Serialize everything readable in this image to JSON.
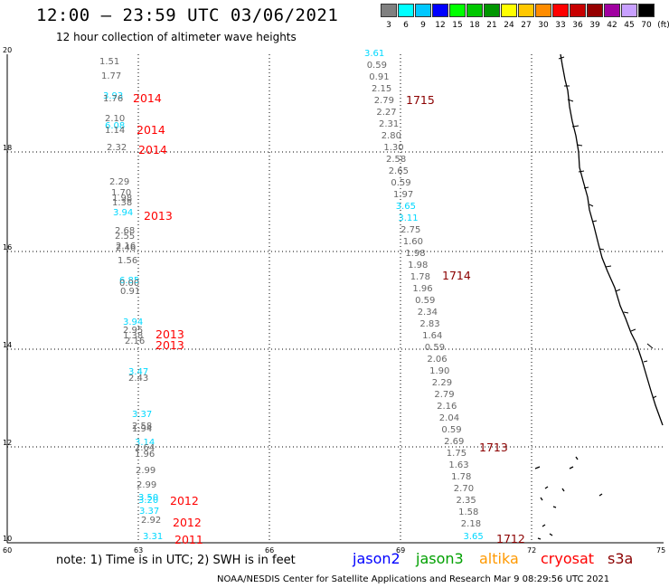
{
  "header": {
    "title": "12:00 – 23:59 UTC 03/06/2021",
    "subtitle": "12 hour collection of altimeter wave heights"
  },
  "colorbar": {
    "unit": "(ft)",
    "bins": [
      {
        "label": "3",
        "color": "#808080"
      },
      {
        "label": "6",
        "color": "#00ffff"
      },
      {
        "label": "9",
        "color": "#00c8ff"
      },
      {
        "label": "12",
        "color": "#0000ff"
      },
      {
        "label": "15",
        "color": "#00ff00"
      },
      {
        "label": "18",
        "color": "#00c800"
      },
      {
        "label": "21",
        "color": "#009600"
      },
      {
        "label": "24",
        "color": "#ffff00"
      },
      {
        "label": "27",
        "color": "#ffc800"
      },
      {
        "label": "30",
        "color": "#ff8c00"
      },
      {
        "label": "33",
        "color": "#ff0000"
      },
      {
        "label": "36",
        "color": "#c80000"
      },
      {
        "label": "39",
        "color": "#960000"
      },
      {
        "label": "42",
        "color": "#a000a0"
      },
      {
        "label": "45",
        "color": "#c8a0ff"
      },
      {
        "label": "70",
        "color": "#000000"
      }
    ]
  },
  "map_axes": {
    "lon_labels": [
      "60",
      "63",
      "66",
      "69",
      "72",
      "75"
    ],
    "lat_labels": [
      "20",
      "18",
      "16",
      "14",
      "12",
      "10"
    ]
  },
  "tracks": {
    "track_a": {
      "values": [
        {
          "v": "1.51",
          "c": "gray"
        },
        {
          "v": "1.77",
          "c": "gray"
        },
        {
          "v": "3.93",
          "c": "cyan"
        },
        {
          "v": "1.76",
          "c": "gray"
        },
        {
          "v": "2.10",
          "c": "gray"
        },
        {
          "v": "6.08",
          "c": "cyan"
        },
        {
          "v": "1.14",
          "c": "gray"
        },
        {
          "v": "2.32",
          "c": "gray"
        },
        {
          "v": "2.29",
          "c": "gray"
        },
        {
          "v": "1.70",
          "c": "gray"
        },
        {
          "v": "1.98",
          "c": "gray"
        },
        {
          "v": "1.38",
          "c": "gray"
        },
        {
          "v": "3.94",
          "c": "cyan"
        },
        {
          "v": "2.68",
          "c": "gray"
        },
        {
          "v": "2.55",
          "c": "gray"
        },
        {
          "v": "2.16",
          "c": "gray"
        },
        {
          "v": "2.46",
          "c": "gray"
        },
        {
          "v": "1.56",
          "c": "gray"
        },
        {
          "v": "6.85",
          "c": "cyan"
        },
        {
          "v": "0.00",
          "c": "gray"
        },
        {
          "v": "0.91",
          "c": "gray"
        },
        {
          "v": "3.94",
          "c": "cyan"
        },
        {
          "v": "2.95",
          "c": "gray"
        },
        {
          "v": "1.38",
          "c": "gray"
        },
        {
          "v": "2.16",
          "c": "gray"
        },
        {
          "v": "3.47",
          "c": "cyan"
        },
        {
          "v": "2.43",
          "c": "gray"
        },
        {
          "v": "3.37",
          "c": "cyan"
        },
        {
          "v": "2.58",
          "c": "gray"
        },
        {
          "v": "1.94",
          "c": "gray"
        },
        {
          "v": "3.14",
          "c": "cyan"
        },
        {
          "v": "2.64",
          "c": "gray"
        },
        {
          "v": "1.96",
          "c": "gray"
        },
        {
          "v": "2.99",
          "c": "gray"
        },
        {
          "v": "2.99",
          "c": "gray"
        },
        {
          "v": "3.50",
          "c": "cyan"
        },
        {
          "v": "3.20",
          "c": "cyan"
        },
        {
          "v": "3.37",
          "c": "cyan"
        },
        {
          "v": "2.92",
          "c": "gray"
        },
        {
          "v": "3.31",
          "c": "cyan"
        }
      ],
      "pass_labels": [
        "2014",
        "2014",
        "2014",
        "2013",
        "2013",
        "2013",
        "2012",
        "2012",
        "2011"
      ]
    },
    "track_b": {
      "values": [
        {
          "v": "3.61",
          "c": "cyan"
        },
        {
          "v": "0.59",
          "c": "gray"
        },
        {
          "v": "0.91",
          "c": "gray"
        },
        {
          "v": "2.15",
          "c": "gray"
        },
        {
          "v": "2.79",
          "c": "gray"
        },
        {
          "v": "2.27",
          "c": "gray"
        },
        {
          "v": "2.31",
          "c": "gray"
        },
        {
          "v": "2.80",
          "c": "gray"
        },
        {
          "v": "1.30",
          "c": "gray"
        },
        {
          "v": "2.58",
          "c": "gray"
        },
        {
          "v": "2.65",
          "c": "gray"
        },
        {
          "v": "0.59",
          "c": "gray"
        },
        {
          "v": "1.97",
          "c": "gray"
        },
        {
          "v": "3.65",
          "c": "cyan"
        },
        {
          "v": "3.11",
          "c": "cyan"
        },
        {
          "v": "2.75",
          "c": "gray"
        },
        {
          "v": "1.60",
          "c": "gray"
        },
        {
          "v": "1.98",
          "c": "gray"
        },
        {
          "v": "1.98",
          "c": "gray"
        },
        {
          "v": "1.78",
          "c": "gray"
        },
        {
          "v": "1.96",
          "c": "gray"
        },
        {
          "v": "0.59",
          "c": "gray"
        },
        {
          "v": "2.34",
          "c": "gray"
        },
        {
          "v": "2.83",
          "c": "gray"
        },
        {
          "v": "1.64",
          "c": "gray"
        },
        {
          "v": "0.59",
          "c": "gray"
        },
        {
          "v": "2.06",
          "c": "gray"
        },
        {
          "v": "1.90",
          "c": "gray"
        },
        {
          "v": "2.29",
          "c": "gray"
        },
        {
          "v": "2.79",
          "c": "gray"
        },
        {
          "v": "2.16",
          "c": "gray"
        },
        {
          "v": "2.04",
          "c": "gray"
        },
        {
          "v": "0.59",
          "c": "gray"
        },
        {
          "v": "2.69",
          "c": "gray"
        },
        {
          "v": "1.75",
          "c": "gray"
        },
        {
          "v": "1.63",
          "c": "gray"
        },
        {
          "v": "1.78",
          "c": "gray"
        },
        {
          "v": "2.70",
          "c": "gray"
        },
        {
          "v": "2.35",
          "c": "gray"
        },
        {
          "v": "1.58",
          "c": "gray"
        },
        {
          "v": "2.18",
          "c": "gray"
        },
        {
          "v": "3.65",
          "c": "cyan"
        }
      ],
      "pass_labels": [
        "1715",
        "1714",
        "1713",
        "1712"
      ]
    }
  },
  "footer": {
    "note": "note:  1) Time is in UTC;  2) SWH is in feet",
    "satellites": [
      {
        "name": "jason2",
        "color": "#0000ff"
      },
      {
        "name": "jason3",
        "color": "#00a000"
      },
      {
        "name": "altika",
        "color": "#ff9900"
      },
      {
        "name": "cryosat",
        "color": "#ff0000"
      },
      {
        "name": "s3a",
        "color": "#8b0000"
      }
    ],
    "credit": "NOAA/NESDIS Center for Satellite Applications and Research    Mar  9 08:29:56 UTC 2021"
  },
  "colors": {
    "gray": "#666666",
    "cyan": "#00d8ff",
    "pass_a": "#ff0000",
    "pass_b": "#8b0000"
  }
}
